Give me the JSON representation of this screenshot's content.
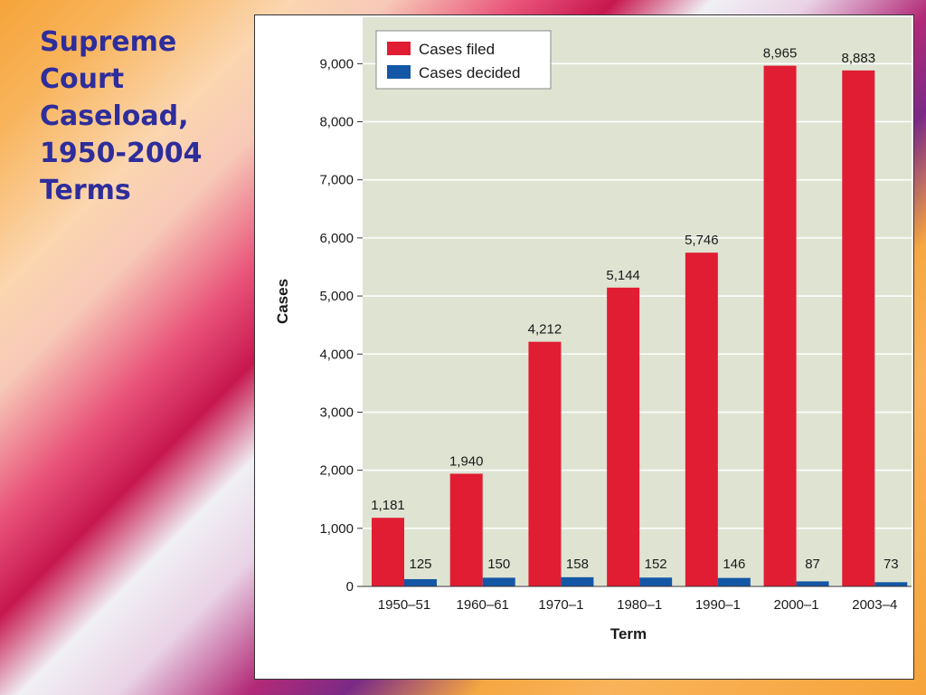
{
  "slide": {
    "title_lines": [
      "Supreme",
      "Court",
      "Caseload,",
      "1950-2004",
      "Terms"
    ]
  },
  "colors": {
    "filed": "#e01d33",
    "decided": "#1457a6",
    "plot_bg": "#dfe4d2",
    "title": "#2e2d9c"
  },
  "chart_data": {
    "type": "bar",
    "categories": [
      "1950–51",
      "1960–61",
      "1970–1",
      "1980–1",
      "1990–1",
      "2000–1",
      "2003–4"
    ],
    "series": [
      {
        "name": "Cases filed",
        "values": [
          1181,
          1940,
          4212,
          5144,
          5746,
          8965,
          8883
        ],
        "labels": [
          "1,181",
          "1,940",
          "4,212",
          "5,144",
          "5,746",
          "8,965",
          "8,883"
        ]
      },
      {
        "name": "Cases decided",
        "values": [
          125,
          150,
          158,
          152,
          146,
          87,
          73
        ],
        "labels": [
          "125",
          "150",
          "158",
          "152",
          "146",
          "87",
          "73"
        ]
      }
    ],
    "title": "",
    "xlabel": "Term",
    "ylabel": "Cases",
    "ylim": [
      0,
      9800
    ],
    "yticks": [
      0,
      1000,
      2000,
      3000,
      4000,
      5000,
      6000,
      7000,
      8000,
      9000
    ],
    "ytick_labels": [
      "0",
      "1,000",
      "2,000",
      "3,000",
      "4,000",
      "5,000",
      "6,000",
      "7,000",
      "8,000",
      "9,000"
    ],
    "grid": true,
    "legend": "top-left"
  }
}
